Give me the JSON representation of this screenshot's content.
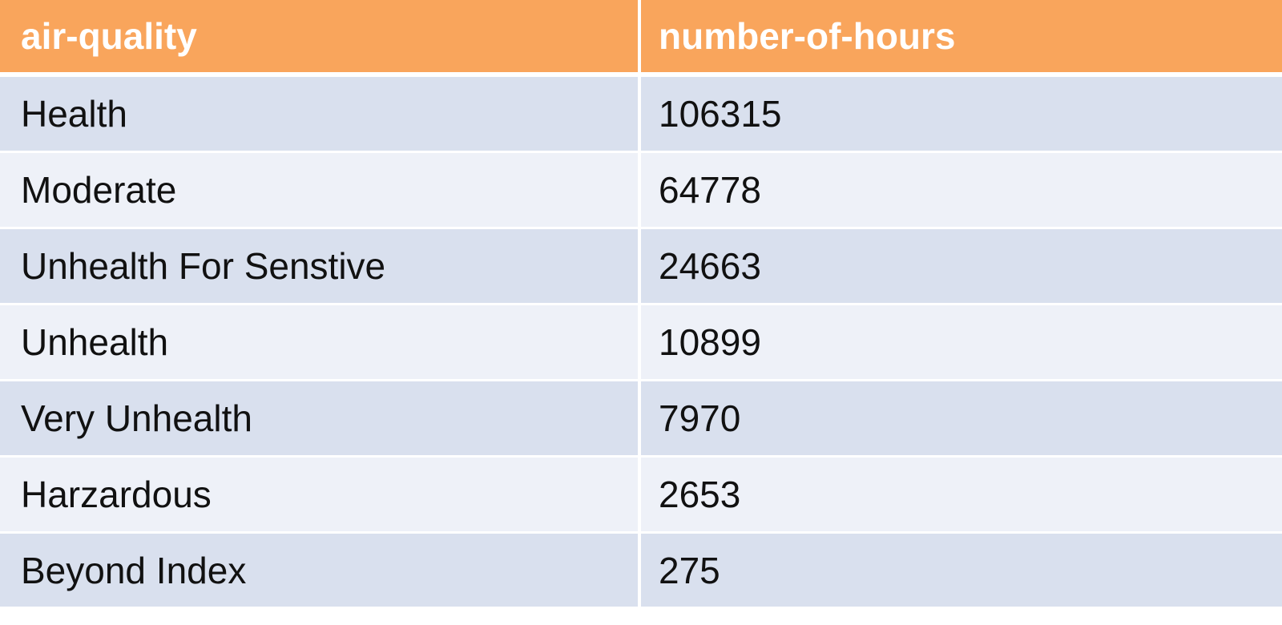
{
  "table": {
    "headers": [
      "air-quality",
      "number-of-hours"
    ],
    "rows": [
      [
        "Health",
        "106315"
      ],
      [
        "Moderate",
        "64778"
      ],
      [
        "Unhealth For Senstive",
        "24663"
      ],
      [
        "Unhealth",
        "10899"
      ],
      [
        "Very Unhealth",
        "7970"
      ],
      [
        "Harzardous",
        "2653"
      ],
      [
        "Beyond Index",
        "275"
      ]
    ]
  },
  "colors": {
    "header_bg": "#f9a55c",
    "header_text": "#ffffff",
    "row_band_dark": "#d9e0ee",
    "row_band_light": "#eef1f8"
  }
}
